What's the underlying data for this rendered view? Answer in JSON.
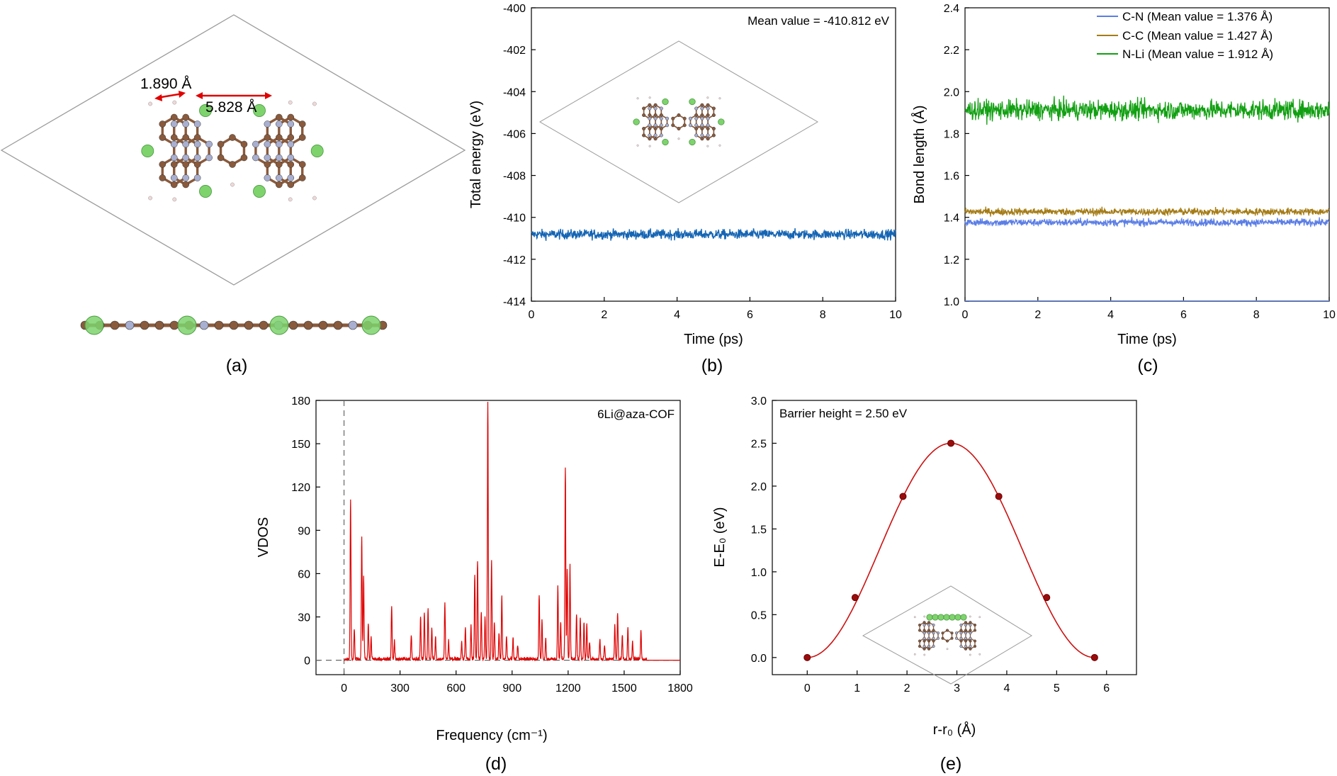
{
  "panels": {
    "a": {
      "label": "(a)",
      "annotations": [
        "1.890 Å",
        "5.828 Å"
      ]
    }
  },
  "colors": {
    "carbon": "#8a5a3c",
    "nitrogen": "#a9afd0",
    "lithium": "#7ed36d",
    "hydrogen": "#f0d8d8",
    "bond_li": "#7bd07b",
    "cell": "#909090",
    "arrow": "#e00000",
    "energy": "#1565b4",
    "cn": "#5b7ee6",
    "cc": "#a57c16",
    "nli": "#12a012",
    "vdos": "#e00000",
    "barrier": "#cc1111",
    "barrier_marker": "#9a0c0c"
  },
  "chart_data": [
    {
      "id": "b",
      "panel_label": "(b)",
      "type": "line",
      "xlabel": "Time (ps)",
      "ylabel": "Total energy (eV)",
      "xlim": [
        0,
        10
      ],
      "ylim": [
        -414,
        -400
      ],
      "xticks": [
        "0",
        "2",
        "4",
        "6",
        "8",
        "10"
      ],
      "yticks": [
        "-414",
        "-412",
        "-410",
        "-408",
        "-406",
        "-404",
        "-402",
        "-400"
      ],
      "annotation": "Mean value = -410.812 eV",
      "series": [
        {
          "mean": -410.812,
          "fluctuation": 0.4,
          "color_key": "energy"
        }
      ]
    },
    {
      "id": "c",
      "panel_label": "(c)",
      "type": "line",
      "xlabel": "Time (ps)",
      "ylabel": "Bond length (Å)",
      "xlim": [
        0,
        10
      ],
      "ylim": [
        1.0,
        2.4
      ],
      "xticks": [
        "0",
        "2",
        "4",
        "6",
        "8",
        "10"
      ],
      "yticks": [
        "1.0",
        "1.2",
        "1.4",
        "1.6",
        "1.8",
        "2.0",
        "2.2",
        "2.4"
      ],
      "legend_position": "top-right",
      "series": [
        {
          "name": "C-N (Mean value = 1.376 Å)",
          "mean": 1.376,
          "fluctuation": 0.03,
          "color_key": "cn"
        },
        {
          "name": "C-C (Mean value = 1.427 Å)",
          "mean": 1.427,
          "fluctuation": 0.03,
          "color_key": "cc"
        },
        {
          "name": "N-Li (Mean value = 1.912 Å)",
          "mean": 1.912,
          "fluctuation": 0.08,
          "color_key": "nli"
        }
      ]
    },
    {
      "id": "d",
      "panel_label": "(d)",
      "type": "line",
      "xlabel": "Frequency (cm⁻¹)",
      "ylabel": "VDOS",
      "xlim": [
        -150,
        1800
      ],
      "ylim": [
        -10,
        180
      ],
      "xticks": [
        "0",
        "300",
        "600",
        "900",
        "1200",
        "1500",
        "1800"
      ],
      "yticks": [
        "0",
        "30",
        "60",
        "90",
        "120",
        "150",
        "180"
      ],
      "annotation": "6Li@aza-COF",
      "peaks": [
        [
          35,
          111
        ],
        [
          55,
          21
        ],
        [
          95,
          85
        ],
        [
          105,
          58
        ],
        [
          130,
          25
        ],
        [
          145,
          15
        ],
        [
          255,
          37
        ],
        [
          270,
          12
        ],
        [
          360,
          17
        ],
        [
          410,
          30
        ],
        [
          430,
          32
        ],
        [
          450,
          35
        ],
        [
          470,
          22
        ],
        [
          490,
          15
        ],
        [
          540,
          39
        ],
        [
          560,
          12
        ],
        [
          630,
          12
        ],
        [
          650,
          22
        ],
        [
          680,
          23
        ],
        [
          700,
          59
        ],
        [
          715,
          68
        ],
        [
          735,
          33
        ],
        [
          755,
          29
        ],
        [
          770,
          178
        ],
        [
          790,
          68
        ],
        [
          805,
          25
        ],
        [
          830,
          18
        ],
        [
          845,
          44
        ],
        [
          870,
          15
        ],
        [
          905,
          14
        ],
        [
          930,
          10
        ],
        [
          1045,
          45
        ],
        [
          1060,
          27
        ],
        [
          1080,
          15
        ],
        [
          1145,
          51
        ],
        [
          1160,
          25
        ],
        [
          1185,
          133
        ],
        [
          1195,
          62
        ],
        [
          1210,
          64
        ],
        [
          1245,
          31
        ],
        [
          1265,
          29
        ],
        [
          1285,
          25
        ],
        [
          1300,
          24
        ],
        [
          1315,
          12
        ],
        [
          1370,
          14
        ],
        [
          1395,
          10
        ],
        [
          1450,
          24
        ],
        [
          1465,
          32
        ],
        [
          1490,
          17
        ],
        [
          1520,
          22
        ],
        [
          1545,
          12
        ],
        [
          1590,
          20
        ]
      ]
    },
    {
      "id": "e",
      "panel_label": "(e)",
      "type": "line",
      "xlabel": "r-r₀ (Å)",
      "ylabel": "E-E₀ (eV)",
      "xlim": [
        -0.7,
        6.6
      ],
      "ylim": [
        -0.2,
        3.0
      ],
      "xticks": [
        "0",
        "1",
        "2",
        "3",
        "4",
        "5",
        "6"
      ],
      "yticks": [
        "0.0",
        "0.5",
        "1.0",
        "1.5",
        "2.0",
        "2.5",
        "3.0"
      ],
      "annotation": "Barrier height = 2.50 eV",
      "x": [
        0,
        0.96,
        1.92,
        2.88,
        3.84,
        4.8,
        5.76
      ],
      "y": [
        0.0,
        0.7,
        1.88,
        2.5,
        1.88,
        0.7,
        0.0
      ]
    }
  ]
}
